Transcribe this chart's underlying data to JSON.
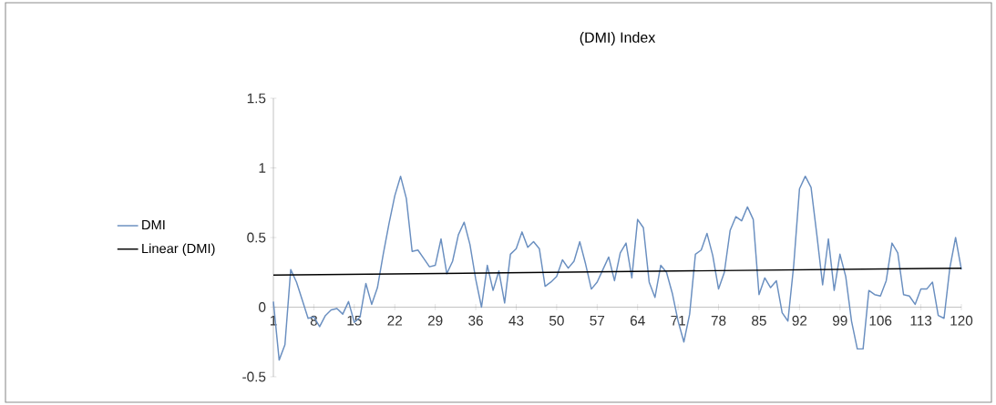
{
  "chart_data": {
    "type": "line",
    "title": "(DMI) Index",
    "x": [
      1,
      2,
      3,
      4,
      5,
      6,
      7,
      8,
      9,
      10,
      11,
      12,
      13,
      14,
      15,
      16,
      17,
      18,
      19,
      20,
      21,
      22,
      23,
      24,
      25,
      26,
      27,
      28,
      29,
      30,
      31,
      32,
      33,
      34,
      35,
      36,
      37,
      38,
      39,
      40,
      41,
      42,
      43,
      44,
      45,
      46,
      47,
      48,
      49,
      50,
      51,
      52,
      53,
      54,
      55,
      56,
      57,
      58,
      59,
      60,
      61,
      62,
      63,
      64,
      65,
      66,
      67,
      68,
      69,
      70,
      71,
      72,
      73,
      74,
      75,
      76,
      77,
      78,
      79,
      80,
      81,
      82,
      83,
      84,
      85,
      86,
      87,
      88,
      89,
      90,
      91,
      92,
      93,
      94,
      95,
      96,
      97,
      98,
      99,
      100,
      101,
      102,
      103,
      104,
      105,
      106,
      107,
      108,
      109,
      110,
      111,
      112,
      113,
      114,
      115,
      116,
      117,
      118,
      119,
      120
    ],
    "series": [
      {
        "name": "DMI",
        "type": "line",
        "color": "#6a8fc0",
        "values": [
          0.04,
          -0.38,
          -0.27,
          0.27,
          0.18,
          0.05,
          -0.08,
          -0.07,
          -0.14,
          -0.06,
          -0.02,
          -0.01,
          -0.05,
          0.04,
          -0.11,
          -0.07,
          0.17,
          0.02,
          0.14,
          0.38,
          0.6,
          0.8,
          0.94,
          0.78,
          0.4,
          0.41,
          0.35,
          0.29,
          0.3,
          0.49,
          0.24,
          0.33,
          0.52,
          0.61,
          0.45,
          0.2,
          0.0,
          0.3,
          0.12,
          0.26,
          0.03,
          0.38,
          0.42,
          0.54,
          0.43,
          0.47,
          0.42,
          0.15,
          0.18,
          0.22,
          0.34,
          0.28,
          0.33,
          0.47,
          0.31,
          0.13,
          0.18,
          0.27,
          0.36,
          0.19,
          0.39,
          0.46,
          0.21,
          0.63,
          0.57,
          0.18,
          0.07,
          0.3,
          0.25,
          0.1,
          -0.1,
          -0.25,
          -0.05,
          0.38,
          0.41,
          0.53,
          0.37,
          0.13,
          0.25,
          0.55,
          0.65,
          0.62,
          0.72,
          0.63,
          0.09,
          0.21,
          0.14,
          0.19,
          -0.04,
          -0.1,
          0.3,
          0.85,
          0.94,
          0.86,
          0.52,
          0.16,
          0.49,
          0.12,
          0.38,
          0.22,
          -0.1,
          -0.3,
          -0.3,
          0.12,
          0.09,
          0.08,
          0.19,
          0.46,
          0.39,
          0.09,
          0.08,
          0.02,
          0.13,
          0.13,
          0.18,
          -0.06,
          -0.08,
          0.28,
          0.5,
          0.27
        ]
      },
      {
        "name": "Linear (DMI)",
        "type": "line",
        "color": "#000000",
        "x": [
          1,
          120
        ],
        "values": [
          0.23,
          0.28
        ]
      }
    ],
    "xlim": [
      1,
      120
    ],
    "ylim": [
      -0.5,
      1.5
    ],
    "xticks": [
      1,
      8,
      15,
      22,
      29,
      36,
      43,
      50,
      57,
      64,
      71,
      78,
      85,
      92,
      99,
      106,
      113,
      120
    ],
    "yticks": [
      -0.5,
      0,
      0.5,
      1,
      1.5
    ],
    "legend": "left"
  }
}
